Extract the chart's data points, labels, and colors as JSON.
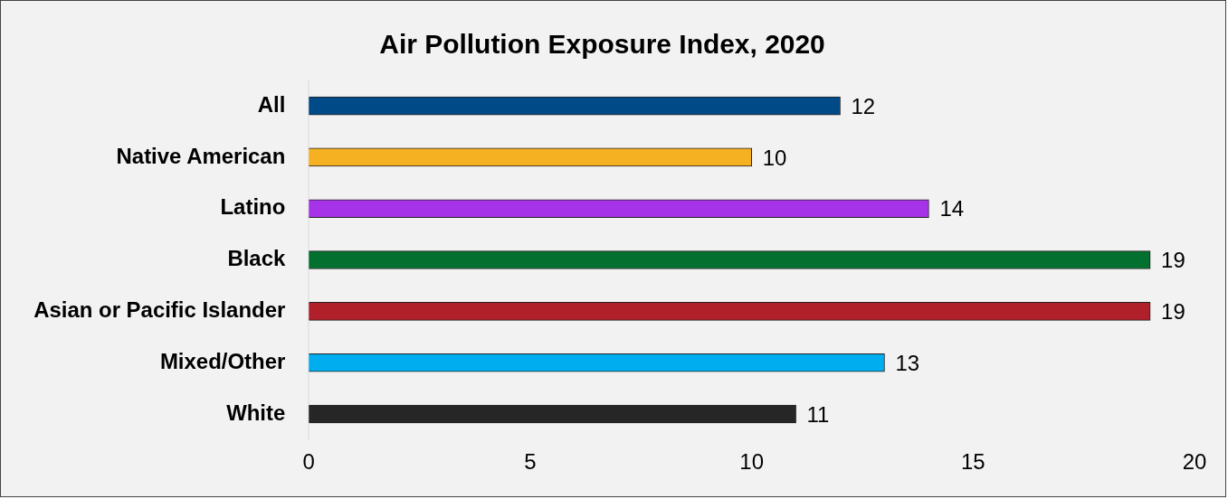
{
  "chart_data": {
    "type": "bar",
    "orientation": "horizontal",
    "title": "Air Pollution Exposure Index, 2020",
    "categories": [
      "All",
      "Native American",
      "Latino",
      "Black",
      "Asian or Pacific Islander",
      "Mixed/Other",
      "White"
    ],
    "values": [
      12,
      10,
      14,
      19,
      19,
      13,
      11
    ],
    "colors": [
      "#004a87",
      "#f5b122",
      "#a733e8",
      "#037030",
      "#b0202a",
      "#00aeef",
      "#262626"
    ],
    "xlim": [
      0,
      20
    ],
    "xticks": [
      0,
      5,
      10,
      15,
      20
    ],
    "data_labels": true,
    "grid": false,
    "legend": false
  }
}
